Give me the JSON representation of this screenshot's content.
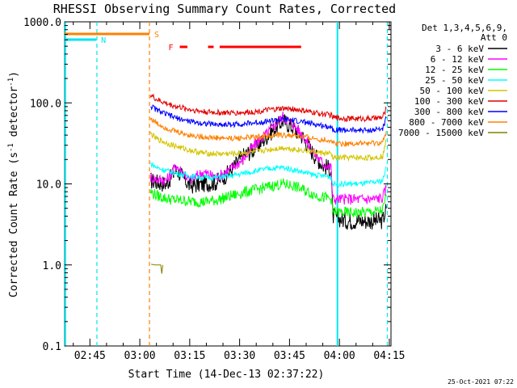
{
  "chart_data": {
    "type": "line",
    "title": "RHESSI Observing Summary Count Rates, Corrected",
    "xlabel": "Start Time (14-Dec-13 02:37:22)",
    "ylabel": "Corrected Count Rate (s⁻¹ detector⁻¹)",
    "ylabel_main": "Corrected Count Rate (s",
    "ylabel_exp": "-1",
    "ylabel_mid": " detector",
    "ylabel_end": ")",
    "y_scale": "log",
    "ylim": [
      0.1,
      1000
    ],
    "xlim_minutes": [
      157.4,
      255.5
    ],
    "x_ticks": [
      {
        "label": "02:45",
        "minute": 165
      },
      {
        "label": "03:00",
        "minute": 180
      },
      {
        "label": "03:15",
        "minute": 195
      },
      {
        "label": "03:30",
        "minute": 210
      },
      {
        "label": "03:45",
        "minute": 225
      },
      {
        "label": "04:00",
        "minute": 240
      },
      {
        "label": "04:15",
        "minute": 255
      }
    ],
    "y_ticks": [
      {
        "label": "1000.0",
        "value": 1000
      },
      {
        "label": "100.0",
        "value": 100
      },
      {
        "label": "10.0",
        "value": 10
      },
      {
        "label": "1.0",
        "value": 1
      },
      {
        "label": "0.1",
        "value": 0.1
      }
    ],
    "legend_header": [
      "Det 1,3,4,5,6,9,",
      "Att 0"
    ],
    "legend_placement": "right",
    "series": [
      {
        "name": "3 - 6 keV",
        "color": "#000000",
        "x": [
          183.2,
          185,
          188,
          191,
          195,
          199,
          203,
          207,
          211,
          215,
          219,
          223,
          226,
          229,
          232,
          235,
          237.5,
          238,
          242,
          246,
          250,
          253,
          254.1
        ],
        "y": [
          11,
          10.5,
          10,
          15,
          9.5,
          10,
          10.5,
          14,
          22,
          28,
          42,
          60,
          50,
          38,
          24,
          17,
          15,
          4,
          3.5,
          3.5,
          3.5,
          3.5,
          5
        ]
      },
      {
        "name": "6 - 12 keV",
        "color": "#ff00ff",
        "x": [
          183.2,
          185,
          188,
          191,
          195,
          199,
          203,
          207,
          211,
          215,
          219,
          223,
          226,
          229,
          232,
          235,
          237.5,
          238,
          242,
          246,
          250,
          253,
          254.1
        ],
        "y": [
          12,
          11.5,
          11,
          17,
          11,
          14,
          12,
          15,
          20,
          32,
          45,
          68,
          55,
          40,
          25,
          18,
          16,
          6.5,
          6.5,
          6.5,
          6.5,
          6.8,
          9
        ]
      },
      {
        "name": "12 - 25 keV",
        "color": "#00ff00",
        "x": [
          183.2,
          185,
          188,
          191,
          195,
          199,
          203,
          207,
          211,
          215,
          219,
          223,
          226,
          229,
          232,
          235,
          237.5,
          238,
          242,
          246,
          250,
          253,
          254.1
        ],
        "y": [
          8,
          7.2,
          6.6,
          6.3,
          6.1,
          6.0,
          6.3,
          7.0,
          7.8,
          8.5,
          9.3,
          10,
          9.5,
          8.5,
          7.5,
          6.8,
          6.6,
          4.5,
          4.4,
          4.4,
          4.5,
          4.7,
          7
        ]
      },
      {
        "name": "25 - 50 keV",
        "color": "#00ffff",
        "x": [
          183.2,
          185,
          188,
          191,
          195,
          199,
          203,
          207,
          211,
          215,
          219,
          223,
          226,
          229,
          232,
          235,
          237.5,
          238,
          242,
          246,
          250,
          253,
          254.1
        ],
        "y": [
          18,
          16,
          14.5,
          13.5,
          12.5,
          12,
          12,
          12.5,
          13.5,
          14.5,
          15.5,
          16,
          15,
          14,
          13,
          12.5,
          12.3,
          10,
          10,
          10,
          10.3,
          11,
          16
        ]
      },
      {
        "name": "50 - 100 keV",
        "color": "#d4c400",
        "x": [
          183.2,
          185,
          188,
          191,
          195,
          199,
          203,
          207,
          211,
          215,
          219,
          223,
          226,
          229,
          232,
          235,
          237.5,
          238,
          242,
          246,
          250,
          253,
          254.1
        ],
        "y": [
          42,
          36,
          32,
          29,
          26,
          24,
          23.5,
          23.5,
          24,
          25,
          26.5,
          28,
          27,
          26,
          25,
          24,
          23.5,
          21,
          21,
          21,
          21,
          22,
          35
        ]
      },
      {
        "name": "100 - 300 keV",
        "color": "#e00000",
        "x": [
          183.2,
          185,
          188,
          191,
          195,
          199,
          203,
          207,
          211,
          215,
          219,
          223,
          226,
          229,
          232,
          235,
          237.5,
          238,
          242,
          246,
          250,
          253,
          254.1
        ],
        "y": [
          125,
          110,
          98,
          90,
          83,
          78,
          76,
          75,
          76,
          78,
          82,
          85,
          84,
          80,
          76,
          73,
          71,
          66,
          64,
          64,
          64,
          66,
          85
        ]
      },
      {
        "name": "300 - 800 keV",
        "color": "#0000ff",
        "x": [
          183.2,
          185,
          188,
          191,
          195,
          199,
          203,
          207,
          211,
          215,
          219,
          223,
          226,
          229,
          232,
          235,
          237.5,
          238,
          242,
          246,
          250,
          253,
          254.1
        ],
        "y": [
          92,
          82,
          72,
          65,
          59,
          56,
          54,
          54,
          55,
          57,
          60,
          62,
          61,
          58,
          55,
          52,
          51,
          47,
          46,
          46,
          46,
          48,
          65
        ]
      },
      {
        "name": "800 - 7000 keV",
        "color": "#ff8000",
        "x": [
          183.2,
          185,
          188,
          191,
          195,
          199,
          203,
          207,
          211,
          215,
          219,
          223,
          226,
          229,
          232,
          235,
          237.5,
          238,
          242,
          246,
          250,
          253,
          254.1
        ],
        "y": [
          65,
          56,
          49,
          44,
          40,
          38,
          37,
          36.5,
          37,
          38,
          39.5,
          40,
          39.5,
          38,
          36.5,
          35,
          34.5,
          32,
          31.5,
          31.5,
          31.5,
          32,
          45
        ]
      },
      {
        "name": "7000 - 15000 keV",
        "color": "#808000",
        "x": [
          183.4,
          184.5,
          185.5,
          186.3,
          186.6,
          186.9
        ],
        "y": [
          1.02,
          1.0,
          1.0,
          1.0,
          0.78,
          1.0
        ]
      }
    ],
    "flags": [
      {
        "label": "N",
        "color": "#00e5ee",
        "x_start": 157.4,
        "x_end": 166.9
      },
      {
        "label": "S",
        "color": "#ff8000",
        "x_start": 157.4,
        "x_end": 182.9
      },
      {
        "label": "F",
        "color": "#ff0000",
        "segments": [
          [
            192,
            194.3
          ],
          [
            200.5,
            202.2
          ],
          [
            204,
            228.5
          ]
        ]
      }
    ],
    "markers": [
      {
        "color": "#00e5ee",
        "minute": 157.6,
        "style": "solid"
      },
      {
        "color": "#00e5ee",
        "minute": 167.1,
        "style": "dashed"
      },
      {
        "color": "#ff8000",
        "minute": 182.9,
        "style": "dashed"
      },
      {
        "color": "#00e5ee",
        "minute": 239.4,
        "style": "solid"
      },
      {
        "color": "#00e5ee",
        "minute": 254.4,
        "style": "dashed"
      }
    ],
    "footer_stamp": "25-Oct-2021 07:22"
  }
}
